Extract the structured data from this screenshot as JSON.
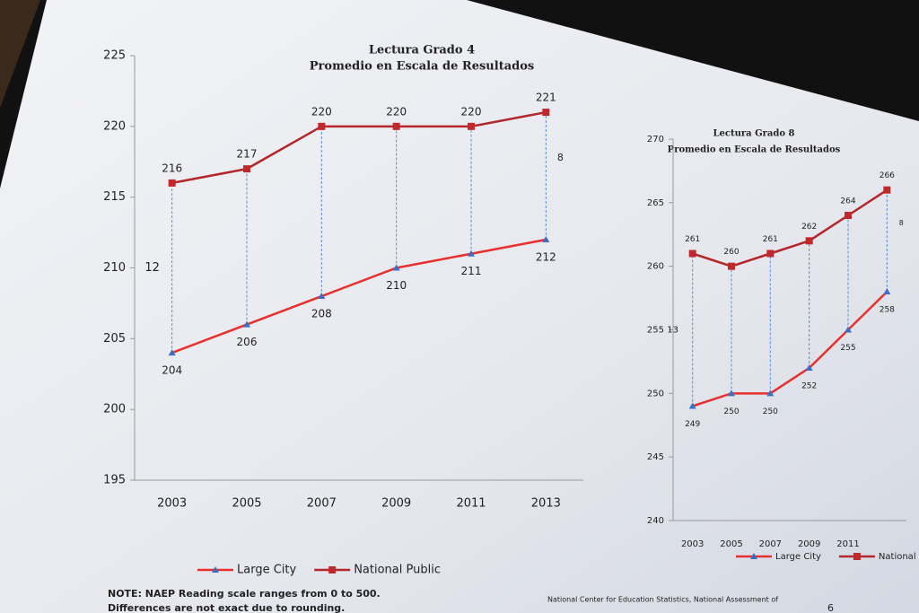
{
  "chart_data": [
    {
      "type": "line",
      "title": "Lectura  Grado 4",
      "subtitle": "Promedio en Escala de Resultados",
      "categories": [
        "2003",
        "2005",
        "2007",
        "2009",
        "2011",
        "2013"
      ],
      "series": [
        {
          "name": "Large City",
          "color": "#e8302e",
          "marker_color": "#3a6fc4",
          "values": [
            204,
            206,
            208,
            210,
            211,
            212
          ]
        },
        {
          "name": "National Public",
          "color": "#b3262a",
          "marker_color": "#c0282c",
          "values": [
            216,
            217,
            220,
            220,
            220,
            221
          ]
        }
      ],
      "ylim": [
        195,
        225
      ],
      "yticks": [
        195,
        200,
        205,
        210,
        215,
        220,
        225
      ],
      "annotations": [
        "12",
        "8"
      ]
    },
    {
      "type": "line",
      "title": "Lectura Grado 8",
      "subtitle": "Promedio en Escala de Resultados",
      "categories": [
        "2003",
        "2005",
        "2007",
        "2009",
        "2011",
        null
      ],
      "series": [
        {
          "name": "Large City",
          "color": "#e8302e",
          "marker_color": "#3a6fc4",
          "values": [
            249,
            250,
            250,
            252,
            255,
            258
          ]
        },
        {
          "name": "National Public",
          "color": "#b3262a",
          "marker_color": "#c0282c",
          "values": [
            261,
            260,
            261,
            262,
            264,
            266
          ]
        }
      ],
      "ylim": [
        240,
        270
      ],
      "yticks": [
        240,
        245,
        250,
        255,
        260,
        265,
        270
      ],
      "annotations": [
        "13",
        "8"
      ]
    }
  ],
  "note": [
    "NOTE: NAEP Reading scale ranges from 0 to 500.",
    "Differences are not exact due to rounding."
  ],
  "source": "National Center for Education Statistics, National Assessment of",
  "page_number": "6"
}
